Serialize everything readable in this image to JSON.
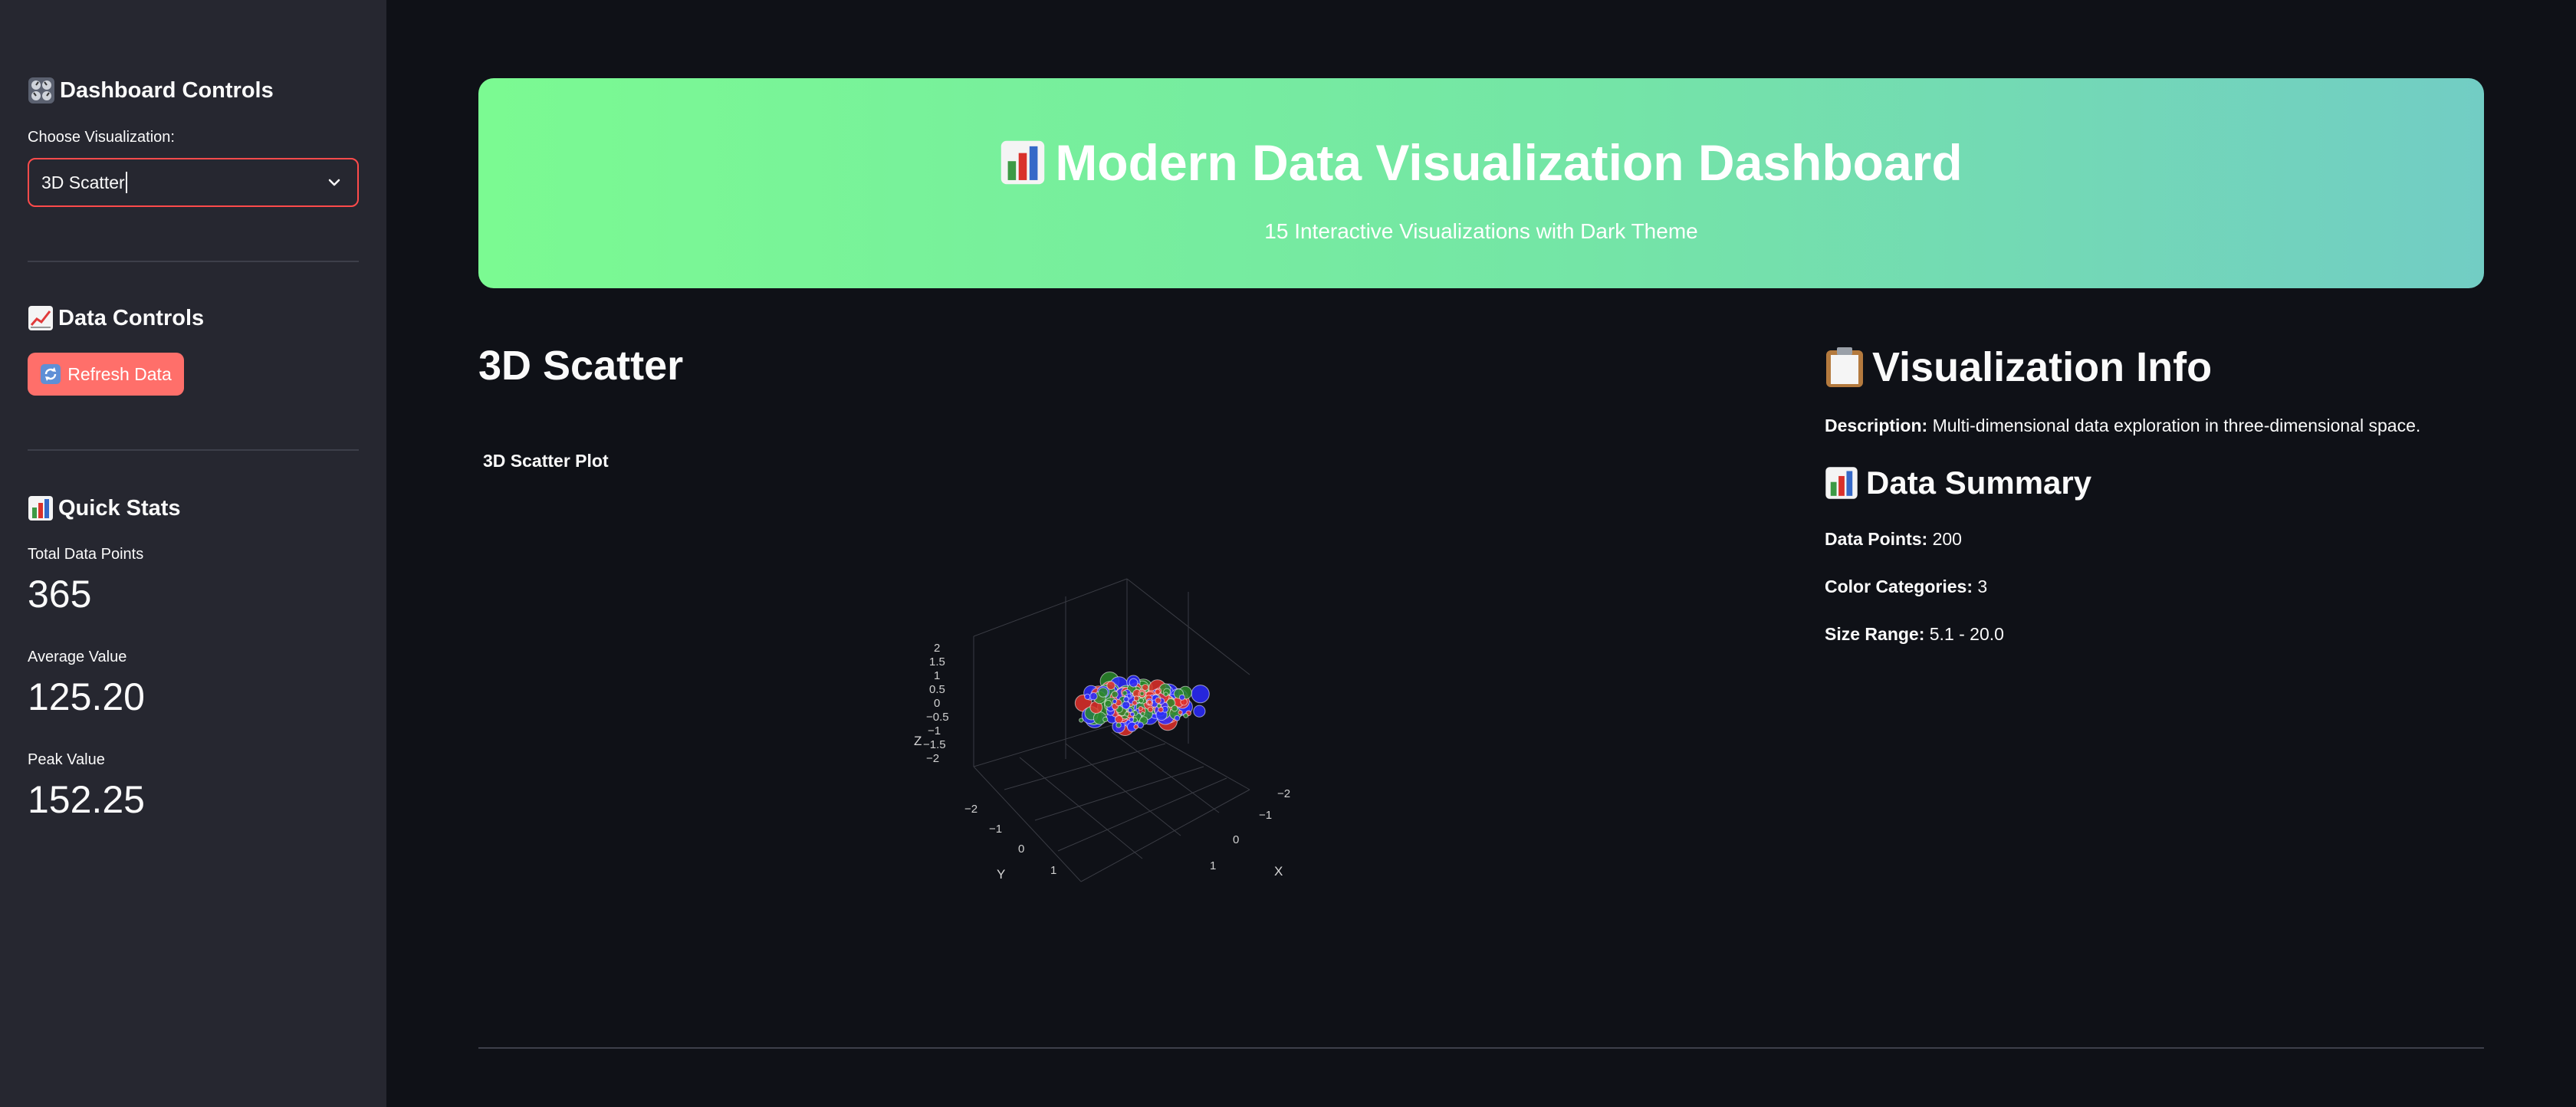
{
  "sidebar": {
    "dashboard_controls": {
      "icon": "control-knobs-icon",
      "title": "Dashboard Controls"
    },
    "choose_label": "Choose Visualization:",
    "select_value": "3D Scatter",
    "data_controls": {
      "icon": "chart-increasing-icon",
      "title": "Data Controls"
    },
    "refresh_button": "Refresh Data",
    "quick_stats": {
      "icon": "bar-chart-icon",
      "title": "Quick Stats"
    },
    "metrics": [
      {
        "label": "Total Data Points",
        "value": "365"
      },
      {
        "label": "Average Value",
        "value": "125.20"
      },
      {
        "label": "Peak Value",
        "value": "152.25"
      }
    ]
  },
  "header": {
    "title": "Modern Data Visualization Dashboard",
    "subtitle": "15 Interactive Visualizations with Dark Theme",
    "gradient": [
      "#7bfa92",
      "#72cdc4"
    ]
  },
  "main": {
    "heading": "3D Scatter",
    "plot_title": "3D Scatter Plot",
    "plot": {
      "axes": {
        "x_label": "X",
        "y_label": "Y",
        "z_label": "Z"
      },
      "z_ticks": [
        "2",
        "1.5",
        "1",
        "0.5",
        "0",
        "−0.5",
        "−1",
        "−1.5",
        "−2"
      ],
      "y_ticks": [
        "−2",
        "−1",
        "0",
        "1"
      ],
      "x_ticks": [
        "−2",
        "−1",
        "0",
        "1"
      ],
      "series_colors": [
        "#2a2aff",
        "#e0302a",
        "#2a8a2a"
      ]
    }
  },
  "info": {
    "heading": "Visualization Info",
    "description_label": "Description:",
    "description": "Multi-dimensional data exploration in three-dimensional space.",
    "summary_heading": "Data Summary",
    "data_points_label": "Data Points:",
    "data_points": "200",
    "color_categories_label": "Color Categories:",
    "color_categories": "3",
    "size_range_label": "Size Range:",
    "size_range": "5.1 - 20.0"
  },
  "colors": {
    "accent": "#ff4b4b",
    "button": "#ff6f6a",
    "sidebar_bg": "#262730",
    "page_bg": "#0f1117"
  }
}
